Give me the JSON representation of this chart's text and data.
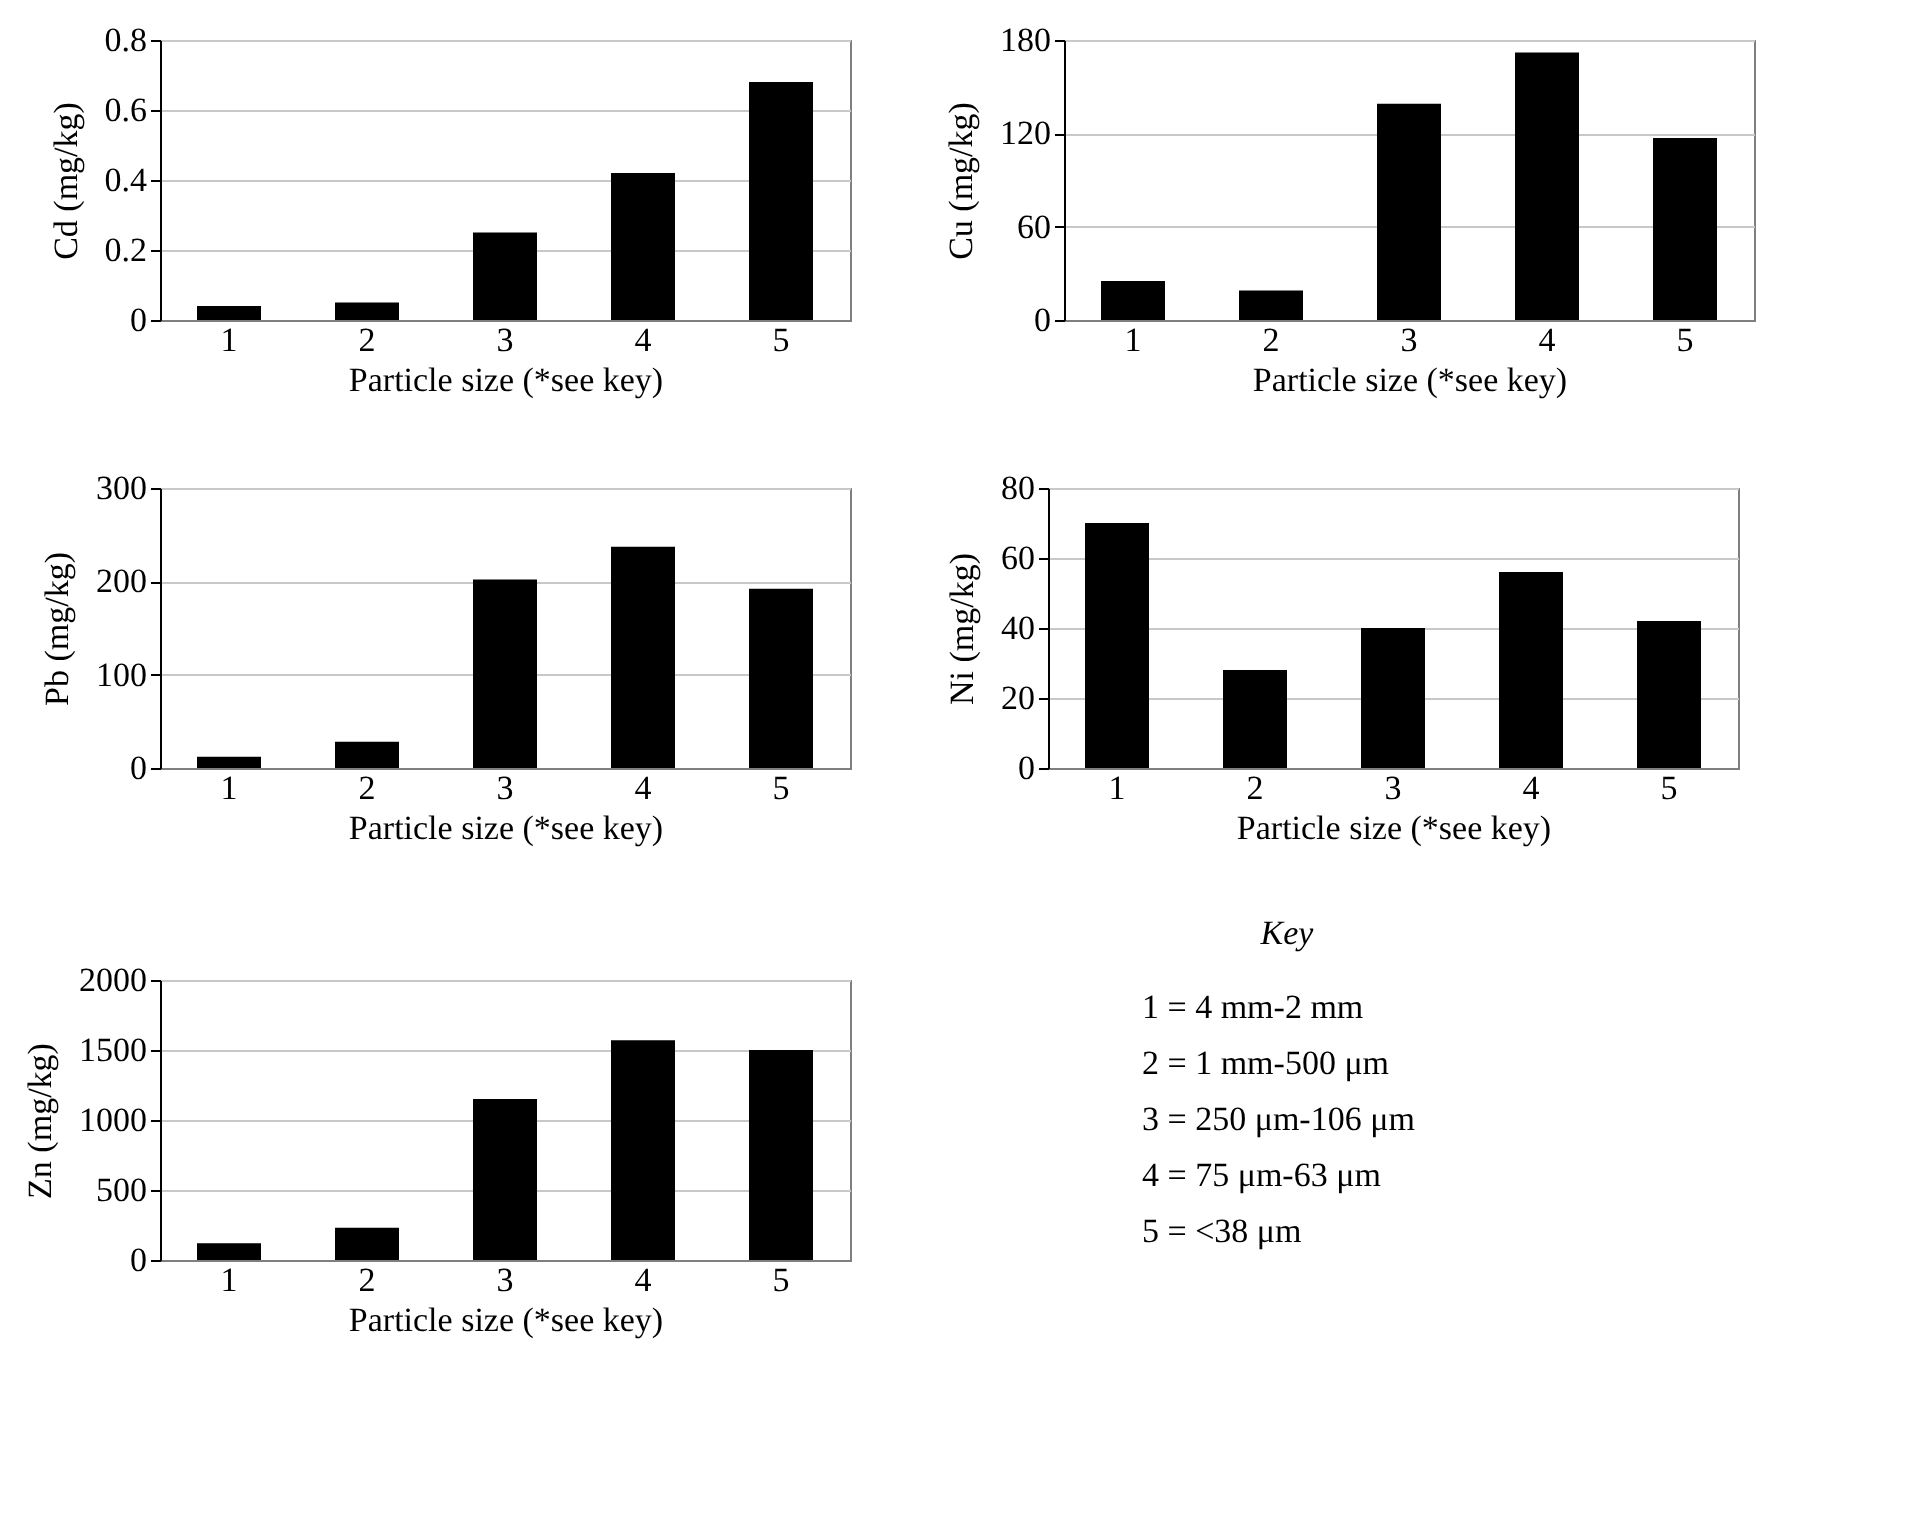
{
  "chart_data": [
    {
      "type": "bar",
      "categories": [
        "1",
        "2",
        "3",
        "4",
        "5"
      ],
      "values": [
        0.04,
        0.05,
        0.25,
        0.42,
        0.68
      ],
      "color": "#000000",
      "xlabel": "Particle size (*see key)",
      "ylabel": "Cd (mg/kg)",
      "ylim": [
        0,
        0.8
      ],
      "yticks": [
        0,
        0.2,
        0.4,
        0.6,
        0.8
      ],
      "grid": "y"
    },
    {
      "type": "bar",
      "categories": [
        "1",
        "2",
        "3",
        "4",
        "5"
      ],
      "values": [
        25,
        19,
        139,
        172,
        117
      ],
      "color": "#000000",
      "xlabel": "Particle size (*see key)",
      "ylabel": "Cu (mg/kg)",
      "ylim": [
        0,
        180
      ],
      "yticks": [
        0,
        60,
        120,
        180
      ],
      "grid": "y"
    },
    {
      "type": "bar",
      "categories": [
        "1",
        "2",
        "3",
        "4",
        "5"
      ],
      "values": [
        12,
        28,
        202,
        237,
        192
      ],
      "color": "#000000",
      "xlabel": "Particle size (*see key)",
      "ylabel": "Pb (mg/kg)",
      "ylim": [
        0,
        300
      ],
      "yticks": [
        0,
        100,
        200,
        300
      ],
      "grid": "y"
    },
    {
      "type": "bar",
      "categories": [
        "1",
        "2",
        "3",
        "4",
        "5"
      ],
      "values": [
        70,
        28,
        40,
        56,
        42
      ],
      "color": "#000000",
      "xlabel": "Particle size (*see key)",
      "ylabel": "Ni (mg/kg)",
      "ylim": [
        0,
        80
      ],
      "yticks": [
        0,
        20,
        40,
        60,
        80
      ],
      "grid": "y"
    },
    {
      "type": "bar",
      "categories": [
        "1",
        "2",
        "3",
        "4",
        "5"
      ],
      "values": [
        120,
        230,
        1150,
        1570,
        1500
      ],
      "color": "#000000",
      "xlabel": "Particle size (*see key)",
      "ylabel": "Zn (mg/kg)",
      "ylim": [
        0,
        2000
      ],
      "yticks": [
        0,
        500,
        1000,
        1500,
        2000
      ],
      "grid": "y"
    },
    {
      "type": "other",
      "title": "Key",
      "annotations": [
        "1 = 4 mm-2 mm",
        "2 = 1 mm-500 μm",
        "3 = 250 μm-106 μm",
        "4 = 75 μm-63 μm",
        "5 = <38 μm"
      ]
    }
  ]
}
